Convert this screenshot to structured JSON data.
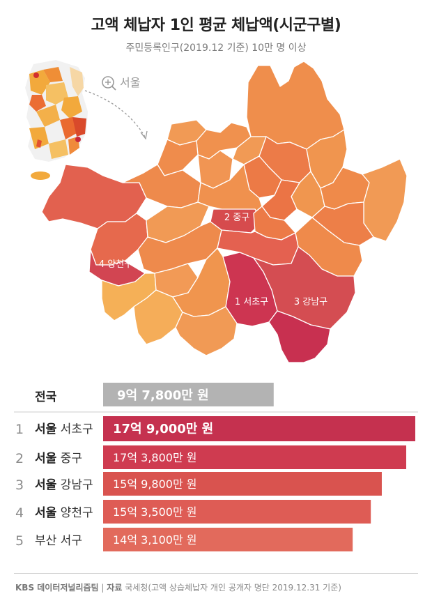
{
  "title": "고액 체납자 1인 평균 체납액(시군구별)",
  "subtitle": "주민등록인구(2019.12 기준) 10만 명 이상",
  "map": {
    "zoom_label": "서울",
    "labels": [
      "2 중구",
      "4 양천구",
      "1 서초구",
      "3 강남구"
    ]
  },
  "chart_data": {
    "type": "bar",
    "orientation": "horizontal",
    "unit": "원",
    "national": {
      "name": "전국",
      "value": 978000000,
      "label": "9억 7,800만 원"
    },
    "rows": [
      {
        "rank": "1",
        "city": "서울",
        "district": "서초구",
        "value": 1790000000,
        "label": "17억 9,000만 원"
      },
      {
        "rank": "2",
        "city": "서울",
        "district": "중구",
        "value": 1738000000,
        "label": "17억 3,800만 원"
      },
      {
        "rank": "3",
        "city": "서울",
        "district": "강남구",
        "value": 1598000000,
        "label": "15억 9,800만 원"
      },
      {
        "rank": "4",
        "city": "서울",
        "district": "양천구",
        "value": 1535000000,
        "label": "15억 3,500만 원"
      },
      {
        "rank": "5",
        "city": "부산",
        "district": "서구",
        "value": 1431000000,
        "label": "14억 3,100만 원"
      }
    ],
    "colors": [
      "#c5314f",
      "#cf3b50",
      "#d9534f",
      "#de5c55",
      "#e26a5c"
    ],
    "national_color": "#b3b3b3"
  },
  "footer": {
    "brand": "KBS 데이터저널리즘팀",
    "separator": "|",
    "source_label": "자료",
    "source_text": "국세청(고액 상습체납자 개인 공개자 명단 2019.12.31 기준)"
  }
}
